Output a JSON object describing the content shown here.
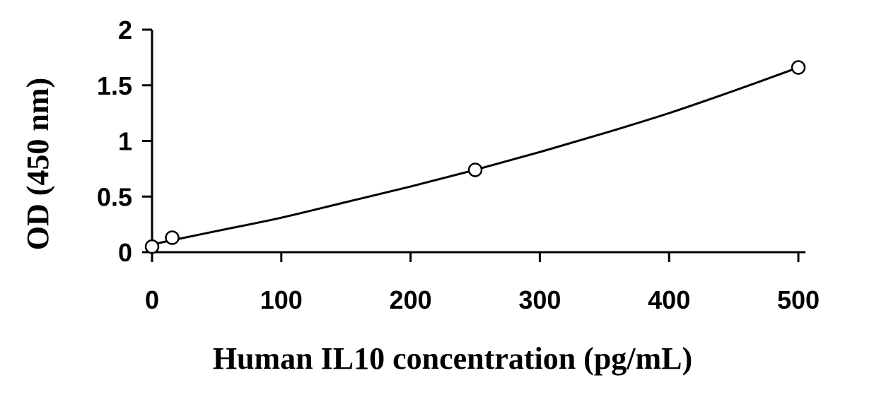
{
  "chart_data": {
    "type": "scatter",
    "title": "",
    "xlabel": "Human IL10 concentration (pg/mL)",
    "ylabel": "OD (450 nm)",
    "xlim": [
      0,
      500
    ],
    "ylim": [
      0,
      2
    ],
    "x_ticks": [
      0,
      100,
      200,
      300,
      400,
      500
    ],
    "x_tick_labels": [
      "0",
      "100",
      "200",
      "300",
      "400",
      "500"
    ],
    "y_ticks": [
      0,
      0.5,
      1,
      1.5,
      2
    ],
    "y_tick_labels": [
      "0",
      "0.5",
      "1",
      "1.5",
      "2"
    ],
    "grid": false,
    "legend": "none",
    "series": [
      {
        "x": [
          0,
          15.6,
          250,
          500
        ],
        "y": [
          0.05,
          0.13,
          0.74,
          1.66
        ],
        "marker": "open-circle",
        "fit": "smooth-curve"
      }
    ],
    "fit_curve": {
      "x": [
        0,
        50,
        100,
        150,
        200,
        250,
        300,
        350,
        400,
        450,
        500
      ],
      "y": [
        0.07,
        0.19,
        0.31,
        0.45,
        0.59,
        0.74,
        0.9,
        1.07,
        1.25,
        1.45,
        1.66
      ]
    }
  }
}
